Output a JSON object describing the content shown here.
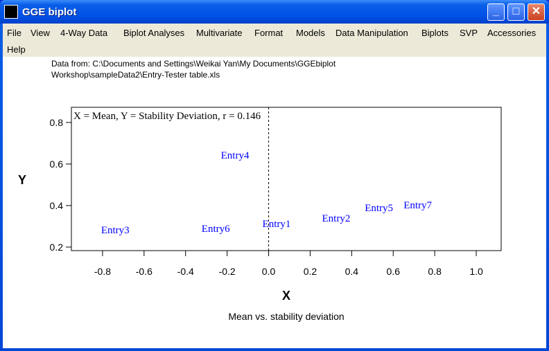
{
  "window": {
    "title": "GGE biplot",
    "icon": "gge-biplot-app-icon",
    "controls": [
      "minimize-icon",
      "maximize-icon",
      "close-icon"
    ]
  },
  "menu": [
    "File",
    "View",
    "4-Way Data",
    "Biplot Analyses",
    "Multivariate",
    "Format",
    "Models",
    "Data Manipulation",
    "Biplots",
    "SVP",
    "Accessories",
    "Help"
  ],
  "data_source": {
    "line1": "Data from: C:\\Documents and Settings\\Weikai Yan\\My Documents\\GGEbiplot",
    "line2": "Workshop\\sampleData2\\Entry-Tester table.xls"
  },
  "caption": "Mean vs. stability deviation",
  "chart_data": {
    "type": "scatter",
    "title": "X = Mean, Y = Stability Deviation, r = 0.146",
    "xlabel": "X",
    "ylabel": "Y",
    "xlim": [
      -0.95,
      1.12
    ],
    "ylim": [
      0.183,
      0.873
    ],
    "xticks": [
      "-0.8",
      "-0.6",
      "-0.4",
      "-0.2",
      "0.0",
      "0.2",
      "0.4",
      "0.6",
      "0.8",
      "1.0"
    ],
    "yticks": [
      "0.2",
      "0.4",
      "0.6",
      "0.8"
    ],
    "reference_line": {
      "x": 0,
      "style": "dashed"
    },
    "label_color": "#0000ff",
    "points": [
      {
        "label": "Entry1",
        "x": -0.03,
        "y": 0.313
      },
      {
        "label": "Entry2",
        "x": 0.257,
        "y": 0.34
      },
      {
        "label": "Entry3",
        "x": -0.807,
        "y": 0.283
      },
      {
        "label": "Entry4",
        "x": -0.23,
        "y": 0.643
      },
      {
        "label": "Entry5",
        "x": 0.463,
        "y": 0.39
      },
      {
        "label": "Entry6",
        "x": -0.323,
        "y": 0.29
      },
      {
        "label": "Entry7",
        "x": 0.65,
        "y": 0.403
      }
    ]
  }
}
